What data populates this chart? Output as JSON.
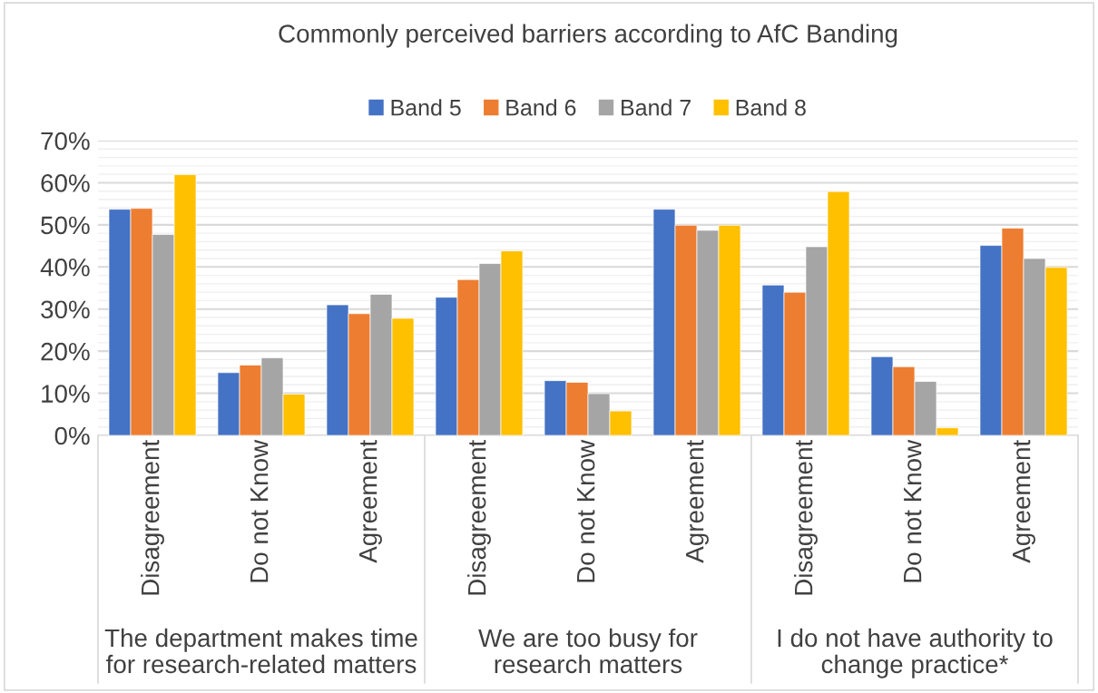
{
  "chart_data": {
    "type": "bar",
    "title": "Commonly perceived barriers according to AfC Banding",
    "categories": [
      "Disagreement",
      "Do not Know",
      "Agreement",
      "Disagreement",
      "Do not Know",
      "Agreement",
      "Disagreement",
      "Do not Know",
      "Agreement"
    ],
    "series": [
      {
        "name": "Band 5",
        "color": "#4472c4",
        "values": [
          53.7,
          14.9,
          31.0,
          32.8,
          13.0,
          53.7,
          35.7,
          18.7,
          45.1
        ]
      },
      {
        "name": "Band 6",
        "color": "#ed7d31",
        "values": [
          53.9,
          16.7,
          28.9,
          37.0,
          12.6,
          49.9,
          34.0,
          16.3,
          49.2
        ]
      },
      {
        "name": "Band 7",
        "color": "#a5a5a5",
        "values": [
          47.7,
          18.4,
          33.5,
          40.8,
          9.9,
          48.7,
          44.8,
          12.8,
          42.0
        ]
      },
      {
        "name": "Band 8",
        "color": "#ffc000",
        "values": [
          61.9,
          9.8,
          27.8,
          43.8,
          5.8,
          49.9,
          57.9,
          1.8,
          39.9
        ]
      }
    ],
    "annotations": [
      "The department makes time\nfor research-related matters",
      "We are too busy for\nresearch matters",
      "I do not have authority to\nchange practice*"
    ],
    "ylim": [
      0,
      70
    ],
    "yticks": [
      {
        "value": 0,
        "label": "0%"
      },
      {
        "value": 2,
        "label": null
      },
      {
        "value": 4,
        "label": null
      },
      {
        "value": 6,
        "label": null
      },
      {
        "value": 8,
        "label": null
      },
      {
        "value": 10,
        "label": "10%"
      },
      {
        "value": 12,
        "label": null
      },
      {
        "value": 14,
        "label": null
      },
      {
        "value": 16,
        "label": null
      },
      {
        "value": 18,
        "label": null
      },
      {
        "value": 20,
        "label": "20%"
      },
      {
        "value": 22,
        "label": null
      },
      {
        "value": 24,
        "label": null
      },
      {
        "value": 26,
        "label": null
      },
      {
        "value": 28,
        "label": null
      },
      {
        "value": 30,
        "label": "30%"
      },
      {
        "value": 32,
        "label": null
      },
      {
        "value": 34,
        "label": null
      },
      {
        "value": 36,
        "label": null
      },
      {
        "value": 38,
        "label": null
      },
      {
        "value": 40,
        "label": "40%"
      },
      {
        "value": 42,
        "label": null
      },
      {
        "value": 44,
        "label": null
      },
      {
        "value": 46,
        "label": null
      },
      {
        "value": 48,
        "label": null
      },
      {
        "value": 50,
        "label": "50%"
      },
      {
        "value": 52,
        "label": null
      },
      {
        "value": 54,
        "label": null
      },
      {
        "value": 56,
        "label": null
      },
      {
        "value": 58,
        "label": null
      },
      {
        "value": 60,
        "label": "60%"
      },
      {
        "value": 62,
        "label": null
      },
      {
        "value": 64,
        "label": null
      },
      {
        "value": 66,
        "label": null
      },
      {
        "value": 68,
        "label": null
      },
      {
        "value": 70,
        "label": "70%"
      }
    ],
    "grid": "y",
    "legend": "top"
  }
}
